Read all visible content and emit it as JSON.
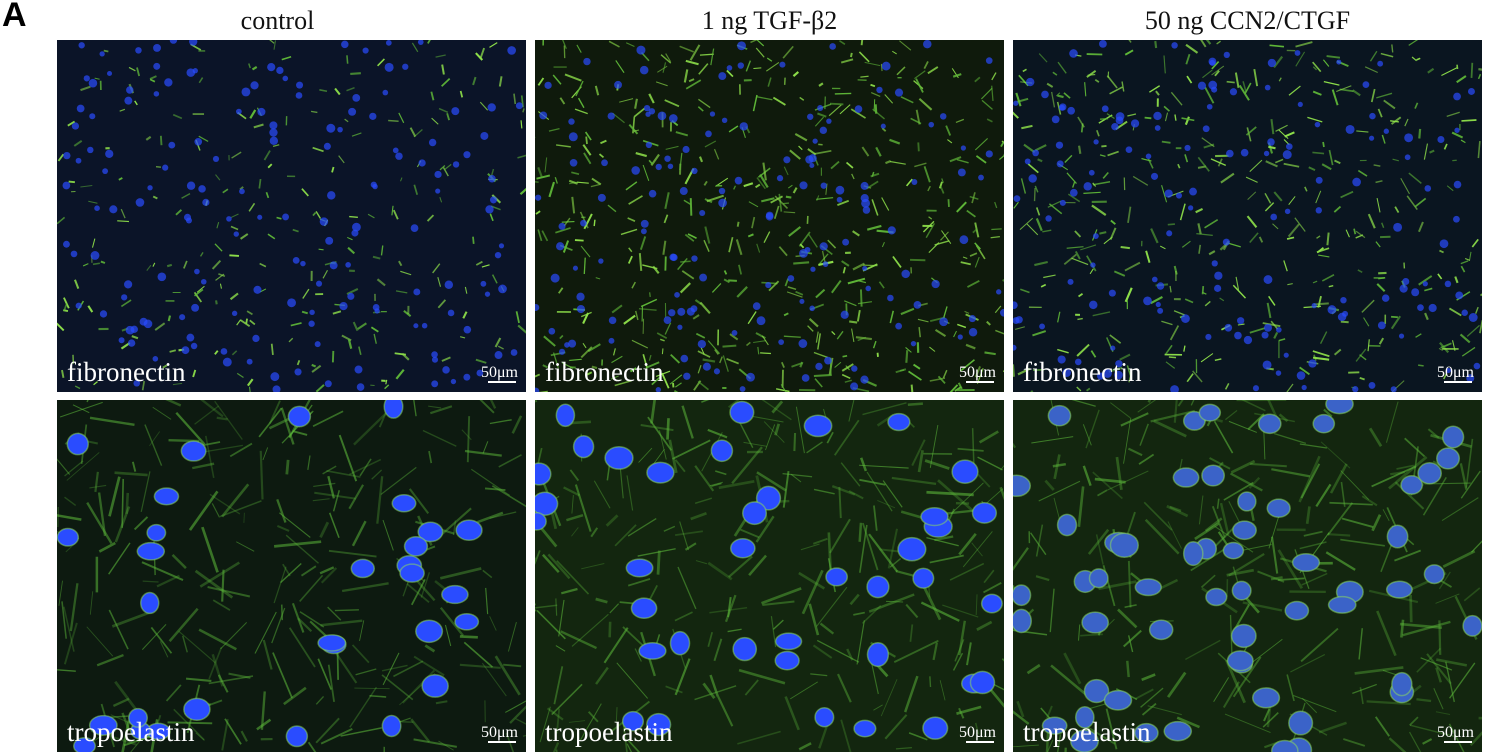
{
  "panel_label": "A",
  "columns": [
    {
      "title": "control"
    },
    {
      "title": "1 ng TGF-β2"
    },
    {
      "title": "50 ng CCN2/CTGF"
    }
  ],
  "rows": [
    {
      "stain": "fibronectin",
      "scale_bar": "50μm"
    },
    {
      "stain": "tropoelastin",
      "scale_bar": "50μm"
    }
  ],
  "colors": {
    "nuclei": "#2a4cff",
    "stain": "#6fd23a",
    "background": "#0b1428"
  }
}
